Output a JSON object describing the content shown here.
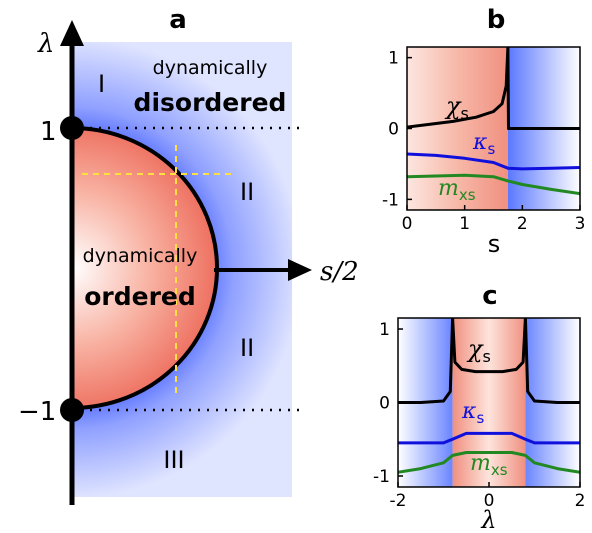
{
  "panel_a": {
    "panel_label": "a",
    "y_axis_label": "λ",
    "x_axis_label": "s/2",
    "tick_top": "1",
    "tick_bottom": "−1",
    "region_I": "I",
    "region_II_upper": "II",
    "region_II_lower": "II",
    "region_III": "III",
    "disordered_line1": "dynamically",
    "disordered_line2": "disordered",
    "ordered_line1": "dynamically",
    "ordered_line2": "ordered",
    "colors": {
      "ordered": "#f08070",
      "disordered": "#3355ff",
      "dashed": "#ffe040"
    }
  },
  "panel_b": {
    "panel_label": "b",
    "xlabel": "s",
    "xticks": [
      "0",
      "1",
      "2",
      "3"
    ],
    "yticks": [
      "1",
      "0",
      "-1"
    ],
    "xlim": [
      0,
      3
    ],
    "ylim": [
      -1.15,
      1.15
    ],
    "transition_x": 1.75,
    "series_labels": {
      "chi": "χ",
      "chi_sub": "s",
      "kappa": "κ",
      "kappa_sub": "s",
      "m": "m",
      "m_sub": "xs"
    },
    "series": [
      {
        "key": "chi",
        "color": "#000000",
        "x": [
          0,
          0.4,
          0.8,
          1.2,
          1.5,
          1.65,
          1.72,
          1.75,
          1.76,
          2.0,
          2.5,
          3.0
        ],
        "y": [
          0.02,
          0.06,
          0.1,
          0.16,
          0.24,
          0.35,
          0.6,
          1.15,
          0.0,
          0.0,
          0.0,
          0.0
        ]
      },
      {
        "key": "kappa",
        "color": "#1010dd",
        "x": [
          0,
          0.5,
          1.0,
          1.5,
          1.75,
          2.0,
          2.5,
          3.0
        ],
        "y": [
          -0.36,
          -0.38,
          -0.42,
          -0.48,
          -0.56,
          -0.57,
          -0.56,
          -0.55
        ]
      },
      {
        "key": "m",
        "color": "#228822",
        "x": [
          0,
          0.5,
          1.0,
          1.5,
          1.75,
          2.0,
          2.5,
          3.0
        ],
        "y": [
          -0.68,
          -0.67,
          -0.66,
          -0.68,
          -0.74,
          -0.79,
          -0.86,
          -0.92
        ]
      }
    ]
  },
  "panel_c": {
    "panel_label": "c",
    "xlabel": "λ",
    "xticks": [
      "-2",
      "0",
      "2"
    ],
    "yticks": [
      "1",
      "0",
      "-1"
    ],
    "xlim": [
      -2,
      2
    ],
    "ylim": [
      -1.15,
      1.15
    ],
    "ordered_range": [
      -0.8,
      0.8
    ],
    "series_labels": {
      "chi": "χ",
      "chi_sub": "s",
      "kappa": "κ",
      "kappa_sub": "s",
      "m": "m",
      "m_sub": "xs"
    },
    "series": [
      {
        "key": "chi_left",
        "color": "#000000",
        "x": [
          -2,
          -1.5,
          -1.0,
          -0.85,
          -0.8
        ],
        "y": [
          0.0,
          0.0,
          0.02,
          0.15,
          1.15
        ]
      },
      {
        "key": "chi_mid",
        "color": "#000000",
        "x": [
          -0.8,
          -0.75,
          -0.6,
          -0.3,
          0,
          0.3,
          0.6,
          0.75,
          0.8
        ],
        "y": [
          1.15,
          0.55,
          0.45,
          0.42,
          0.42,
          0.42,
          0.45,
          0.55,
          1.15
        ]
      },
      {
        "key": "chi_right",
        "color": "#000000",
        "x": [
          0.8,
          0.85,
          1.0,
          1.5,
          2
        ],
        "y": [
          1.15,
          0.15,
          0.02,
          0.0,
          0.0
        ]
      },
      {
        "key": "kappa",
        "color": "#1010dd",
        "x": [
          -2,
          -1.0,
          -0.8,
          -0.5,
          0,
          0.5,
          0.8,
          1.0,
          2
        ],
        "y": [
          -0.55,
          -0.55,
          -0.5,
          -0.42,
          -0.42,
          -0.42,
          -0.5,
          -0.55,
          -0.55
        ]
      },
      {
        "key": "m",
        "color": "#228822",
        "x": [
          -2,
          -1.5,
          -1.0,
          -0.8,
          -0.5,
          0,
          0.5,
          0.8,
          1.0,
          1.5,
          2
        ],
        "y": [
          -0.95,
          -0.9,
          -0.82,
          -0.72,
          -0.68,
          -0.68,
          -0.68,
          -0.72,
          -0.82,
          -0.9,
          -0.95
        ]
      }
    ]
  }
}
